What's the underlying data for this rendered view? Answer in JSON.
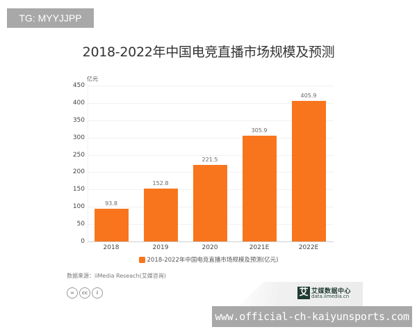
{
  "overlays": {
    "top_badge": "TG: MYYJJPP",
    "bottom_watermark": "www.official-ch-kaiyunsports.com"
  },
  "chart": {
    "title": "2018-2022年中国电竞直播市场规模及预测",
    "unit": "亿元",
    "y_ticks": [
      "0",
      "50",
      "100",
      "150",
      "200",
      "250",
      "300",
      "350",
      "400",
      "450"
    ],
    "bars": [
      {
        "label": "2018",
        "value": "93.8"
      },
      {
        "label": "2019",
        "value": "152.8"
      },
      {
        "label": "2020",
        "value": "221.5"
      },
      {
        "label": "2021E",
        "value": "305.9"
      },
      {
        "label": "2022E",
        "value": "405.9"
      }
    ],
    "legend": "2018-2022年中国电竞直播市场规模及预测(亿元)",
    "bar_color": "#f8751e"
  },
  "footer": {
    "source": "数据来源：iiMedia Reseach(艾媒咨询)",
    "license_icons": [
      "=",
      "cc",
      "i"
    ],
    "logo_mark": "艾",
    "logo_name": "艾媒数据中心",
    "logo_url": "data.iimedia.cn"
  },
  "chart_data": {
    "type": "bar",
    "title": "2018-2022年中国电竞直播市场规模及预测",
    "categories": [
      "2018",
      "2019",
      "2020",
      "2021E",
      "2022E"
    ],
    "values": [
      93.8,
      152.8,
      221.5,
      305.9,
      405.9
    ],
    "series": [
      {
        "name": "2018-2022年中国电竞直播市场规模及预测(亿元)",
        "values": [
          93.8,
          152.8,
          221.5,
          305.9,
          405.9
        ]
      }
    ],
    "xlabel": "",
    "ylabel": "亿元",
    "ylim": [
      0,
      450
    ],
    "y_ticks": [
      0,
      50,
      100,
      150,
      200,
      250,
      300,
      350,
      400,
      450
    ],
    "grid": true,
    "legend_position": "bottom",
    "data_labels": true,
    "source": "数据来源：iiMedia Reseach(艾媒咨询)"
  }
}
